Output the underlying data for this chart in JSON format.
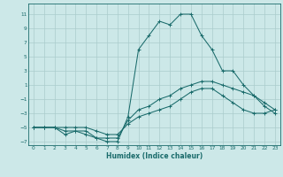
{
  "xlabel": "Humidex (Indice chaleur)",
  "background_color": "#cce8e8",
  "grid_color": "#aacccc",
  "line_color": "#1a6b6b",
  "xlim": [
    -0.5,
    23.5
  ],
  "ylim": [
    -7.5,
    12.5
  ],
  "xticks": [
    0,
    1,
    2,
    3,
    4,
    5,
    6,
    7,
    8,
    9,
    10,
    11,
    12,
    13,
    14,
    15,
    16,
    17,
    18,
    19,
    20,
    21,
    22,
    23
  ],
  "yticks": [
    -7,
    -5,
    -3,
    -1,
    1,
    3,
    5,
    7,
    9,
    11
  ],
  "series1_x": [
    0,
    1,
    2,
    3,
    4,
    5,
    6,
    7,
    8,
    9,
    10,
    11,
    12,
    13,
    14,
    15,
    16,
    17,
    18,
    19,
    20,
    21,
    22,
    23
  ],
  "series1_y": [
    -5,
    -5,
    -5,
    -5,
    -5,
    -5,
    -5.5,
    -6,
    -6,
    -4.5,
    -3.5,
    -3,
    -2.5,
    -2,
    -1,
    0,
    0.5,
    0.5,
    -0.5,
    -1.5,
    -2.5,
    -3,
    -3,
    -2.5
  ],
  "series2_x": [
    0,
    1,
    2,
    3,
    4,
    5,
    6,
    7,
    8,
    9,
    10,
    11,
    12,
    13,
    14,
    15,
    16,
    17,
    18,
    19,
    20,
    21,
    22,
    23
  ],
  "series2_y": [
    -5,
    -5,
    -5,
    -6,
    -5.5,
    -6,
    -6.5,
    -7,
    -7,
    -3.5,
    6,
    8,
    10,
    9.5,
    11,
    11,
    8,
    6,
    3,
    3,
    1,
    -0.5,
    -1.5,
    -2.5
  ],
  "series3_x": [
    0,
    1,
    2,
    3,
    4,
    5,
    6,
    7,
    8,
    9,
    10,
    11,
    12,
    13,
    14,
    15,
    16,
    17,
    18,
    19,
    20,
    21,
    22,
    23
  ],
  "series3_y": [
    -5,
    -5,
    -5,
    -5.5,
    -5.5,
    -5.5,
    -6.5,
    -6.5,
    -6.5,
    -4,
    -2.5,
    -2,
    -1,
    -0.5,
    0.5,
    1,
    1.5,
    1.5,
    1,
    0.5,
    0,
    -0.5,
    -2,
    -3
  ]
}
